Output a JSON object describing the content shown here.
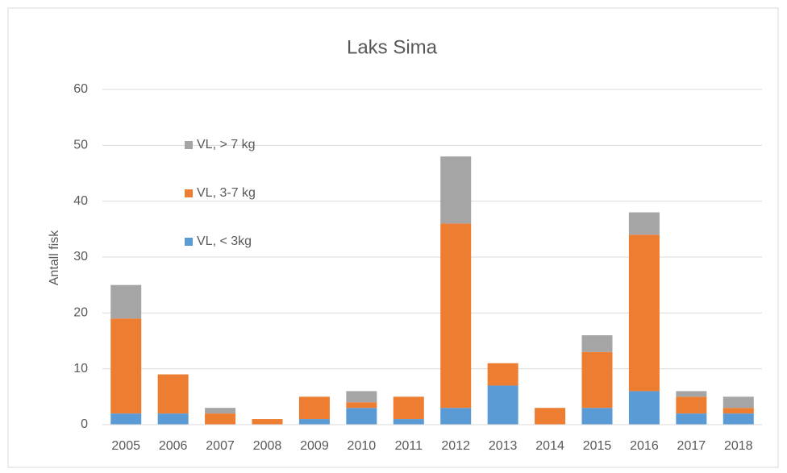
{
  "chart_data": {
    "type": "stacked_bar",
    "title": "Laks Sima",
    "y_label": "Antall fisk",
    "categories": [
      "2005",
      "2006",
      "2007",
      "2008",
      "2009",
      "2010",
      "2011",
      "2012",
      "2013",
      "2014",
      "2015",
      "2016",
      "2017",
      "2018"
    ],
    "series": [
      {
        "name": "VL, < 3kg",
        "color": "#5b9bd5",
        "values": [
          2,
          2,
          0,
          0,
          1,
          3,
          1,
          3,
          7,
          0,
          3,
          6,
          2,
          2
        ]
      },
      {
        "name": "VL, 3-7 kg",
        "color": "#ed7d31",
        "values": [
          17,
          7,
          2,
          1,
          4,
          1,
          4,
          33,
          4,
          3,
          10,
          28,
          3,
          1
        ]
      },
      {
        "name": "VL, > 7 kg",
        "color": "#a5a5a5",
        "values": [
          6,
          0,
          1,
          0,
          0,
          2,
          0,
          12,
          0,
          0,
          3,
          4,
          1,
          2
        ]
      }
    ],
    "ylim": [
      0,
      60
    ],
    "yticks": [
      0,
      10,
      20,
      30,
      40,
      50,
      60
    ],
    "grid": true
  }
}
